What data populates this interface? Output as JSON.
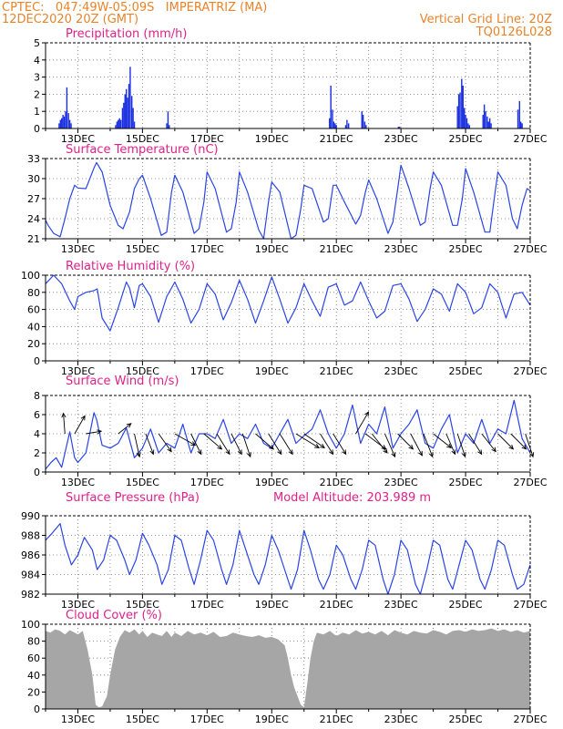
{
  "header": {
    "station_line": "CPTEC:   047:49W-05:09S   IMPERATRIZ (MA)",
    "run_line": "12DEC2020 20Z (GMT)",
    "grid_note": "Vertical Grid Line: 20Z",
    "model_code": "TQ0126L028"
  },
  "colors": {
    "header": "#e8832a",
    "title": "#e0208a",
    "line": "#2a44e6",
    "bar": "#1a2fe0",
    "cloud": "#a6a6a6"
  },
  "chart_data": [
    {
      "type": "bar",
      "title": "Precipitation (mm/h)",
      "ylim": [
        0,
        5
      ],
      "yticks": [
        0,
        1,
        2,
        3,
        4,
        5
      ],
      "xticks": [
        "13DEC",
        "15DEC",
        "17DEC",
        "19DEC",
        "21DEC",
        "23DEC",
        "25DEC",
        "27DEC"
      ],
      "grid": true,
      "x": [
        12.42,
        12.46,
        12.5,
        12.54,
        12.58,
        12.62,
        12.66,
        12.71,
        12.75,
        12.79,
        14.17,
        14.21,
        14.25,
        14.29,
        14.33,
        14.38,
        14.42,
        14.46,
        14.5,
        14.54,
        14.58,
        14.62,
        14.67,
        14.71,
        14.75,
        15.75,
        15.79,
        15.83,
        20.79,
        20.83,
        20.88,
        20.92,
        20.96,
        21.0,
        21.29,
        21.33,
        21.38,
        21.79,
        21.83,
        21.88,
        21.92,
        22.92,
        22.96,
        24.75,
        24.79,
        24.83,
        24.88,
        24.92,
        24.96,
        25.0,
        25.04,
        25.08,
        25.12,
        25.54,
        25.58,
        25.62,
        25.67,
        25.71,
        25.75,
        25.79,
        26.62,
        26.67,
        26.71,
        26.75
      ],
      "values": [
        0.3,
        0.5,
        0.6,
        0.8,
        0.7,
        1.0,
        2.4,
        0.9,
        0.5,
        0.3,
        0.2,
        0.4,
        0.5,
        0.6,
        0.5,
        1.2,
        1.5,
        2.0,
        2.3,
        1.8,
        2.6,
        3.6,
        1.9,
        1.2,
        0.4,
        0.3,
        1.0,
        0.2,
        0.6,
        2.5,
        1.1,
        0.4,
        0.3,
        0.2,
        0.2,
        0.5,
        0.3,
        1.0,
        0.8,
        0.4,
        0.2,
        0.1,
        0.1,
        1.3,
        2.0,
        2.1,
        2.9,
        2.5,
        1.2,
        0.8,
        0.6,
        0.3,
        0.2,
        0.8,
        1.4,
        1.0,
        0.7,
        0.4,
        0.6,
        0.3,
        1.1,
        1.6,
        0.4,
        0.3
      ]
    },
    {
      "type": "line",
      "title": "Surface Temperature (nC)",
      "ylim": [
        21,
        33
      ],
      "yticks": [
        21,
        24,
        27,
        30,
        33
      ],
      "xticks": [
        "13DEC",
        "15DEC",
        "17DEC",
        "19DEC",
        "21DEC",
        "23DEC",
        "25DEC",
        "27DEC"
      ],
      "grid": true,
      "x": [
        12.0,
        12.08,
        12.25,
        12.45,
        12.6,
        12.75,
        12.9,
        13.0,
        13.25,
        13.5,
        13.58,
        13.75,
        14.0,
        14.25,
        14.4,
        14.6,
        14.75,
        14.9,
        15.0,
        15.25,
        15.58,
        15.75,
        15.9,
        16.0,
        16.25,
        16.6,
        16.75,
        16.9,
        17.0,
        17.25,
        17.6,
        17.75,
        17.9,
        18.0,
        18.25,
        18.6,
        18.75,
        18.9,
        19.0,
        19.25,
        19.6,
        19.75,
        19.9,
        20.0,
        20.25,
        20.6,
        20.75,
        20.9,
        21.0,
        21.25,
        21.6,
        21.75,
        21.9,
        22.0,
        22.25,
        22.6,
        22.75,
        22.9,
        23.0,
        23.25,
        23.6,
        23.75,
        23.9,
        24.0,
        24.25,
        24.6,
        24.75,
        24.9,
        25.0,
        25.25,
        25.6,
        25.75,
        25.9,
        26.0,
        26.25,
        26.45,
        26.6,
        26.75,
        26.9,
        27.0
      ],
      "values": [
        23.8,
        23.0,
        21.8,
        21.3,
        24.0,
        27.0,
        29.0,
        28.6,
        28.5,
        31.6,
        32.4,
        31.0,
        26.0,
        23.0,
        22.5,
        25.0,
        28.5,
        30.0,
        30.5,
        27.0,
        21.5,
        22.0,
        28.0,
        30.5,
        28.0,
        21.8,
        22.5,
        26.5,
        31.0,
        28.5,
        22.0,
        22.5,
        26.5,
        31.0,
        28.0,
        22.3,
        21.0,
        26.5,
        29.5,
        28.0,
        21.0,
        21.5,
        25.5,
        29.0,
        28.5,
        23.5,
        24.0,
        29.0,
        29.0,
        26.5,
        23.2,
        24.5,
        28.0,
        29.8,
        27.0,
        21.8,
        23.5,
        28.5,
        32.0,
        28.5,
        23.0,
        23.5,
        28.5,
        31.0,
        29.0,
        23.0,
        23.0,
        27.0,
        31.5,
        28.0,
        22.0,
        22.0,
        27.5,
        31.0,
        29.0,
        24.0,
        22.5,
        26.0,
        28.5,
        28.2
      ]
    },
    {
      "type": "line",
      "title": "Relative Humidity (%)",
      "ylim": [
        0,
        100
      ],
      "yticks": [
        0,
        20,
        40,
        60,
        80,
        100
      ],
      "xticks": [
        "13DEC",
        "15DEC",
        "17DEC",
        "19DEC",
        "21DEC",
        "23DEC",
        "25DEC",
        "27DEC"
      ],
      "grid": true,
      "x": [
        12.0,
        12.25,
        12.5,
        12.75,
        12.9,
        13.0,
        13.25,
        13.5,
        13.6,
        13.75,
        14.0,
        14.25,
        14.5,
        14.6,
        14.75,
        14.9,
        15.0,
        15.25,
        15.5,
        15.75,
        16.0,
        16.25,
        16.5,
        16.75,
        17.0,
        17.25,
        17.5,
        17.75,
        18.0,
        18.25,
        18.5,
        18.75,
        19.0,
        19.25,
        19.5,
        19.75,
        20.0,
        20.25,
        20.5,
        20.75,
        21.0,
        21.25,
        21.5,
        21.75,
        22.0,
        22.25,
        22.5,
        22.75,
        23.0,
        23.25,
        23.5,
        23.75,
        24.0,
        24.25,
        24.5,
        24.75,
        25.0,
        25.25,
        25.5,
        25.75,
        26.0,
        26.25,
        26.5,
        26.75,
        27.0
      ],
      "values": [
        90,
        100,
        90,
        70,
        60,
        75,
        80,
        82,
        84,
        50,
        35,
        62,
        92,
        85,
        62,
        88,
        90,
        75,
        45,
        75,
        92,
        72,
        44,
        60,
        90,
        78,
        48,
        68,
        94,
        72,
        44,
        70,
        98,
        72,
        44,
        62,
        90,
        70,
        52,
        86,
        90,
        65,
        70,
        92,
        70,
        50,
        58,
        88,
        90,
        72,
        46,
        60,
        84,
        78,
        58,
        90,
        80,
        55,
        62,
        90,
        80,
        50,
        78,
        80,
        65
      ]
    },
    {
      "type": "line",
      "title": "Surface Wind (m/s)",
      "ylim": [
        0,
        8
      ],
      "yticks": [
        0,
        2,
        4,
        6,
        8
      ],
      "xticks": [
        "13DEC",
        "15DEC",
        "17DEC",
        "19DEC",
        "21DEC",
        "23DEC",
        "25DEC",
        "27DEC"
      ],
      "grid": true,
      "x": [
        12.0,
        12.17,
        12.33,
        12.5,
        12.6,
        12.75,
        12.9,
        13.0,
        13.25,
        13.5,
        13.58,
        13.75,
        14.0,
        14.25,
        14.5,
        14.75,
        15.0,
        15.25,
        15.5,
        15.75,
        16.0,
        16.25,
        16.5,
        16.75,
        17.0,
        17.25,
        17.5,
        17.75,
        18.0,
        18.25,
        18.5,
        18.75,
        19.0,
        19.25,
        19.5,
        19.75,
        20.0,
        20.25,
        20.5,
        20.75,
        21.0,
        21.25,
        21.5,
        21.75,
        22.0,
        22.25,
        22.5,
        22.75,
        23.0,
        23.25,
        23.5,
        23.75,
        24.0,
        24.25,
        24.5,
        24.75,
        25.0,
        25.25,
        25.5,
        25.75,
        26.0,
        26.25,
        26.5,
        26.75,
        27.0
      ],
      "values": [
        0.3,
        1.0,
        1.5,
        0.5,
        2.0,
        4.2,
        1.5,
        1.0,
        2.0,
        6.2,
        5.5,
        2.8,
        2.5,
        3.0,
        4.6,
        1.5,
        2.5,
        4.5,
        2.0,
        3.0,
        2.5,
        5.0,
        2.0,
        4.0,
        4.0,
        3.5,
        5.5,
        3.0,
        4.0,
        3.5,
        5.0,
        3.0,
        2.5,
        4.0,
        5.5,
        3.0,
        3.8,
        4.5,
        6.5,
        4.0,
        2.5,
        4.0,
        7.0,
        3.0,
        5.0,
        4.0,
        6.8,
        2.5,
        4.0,
        5.0,
        6.5,
        3.0,
        2.5,
        4.5,
        6.0,
        2.0,
        4.0,
        3.0,
        5.5,
        3.0,
        4.5,
        4.0,
        7.5,
        3.5,
        2.0
      ],
      "arrows": [
        {
          "x": 12.6,
          "y": 4.0,
          "dx": -0.06,
          "dy": 0.8
        },
        {
          "x": 12.9,
          "y": 4.0,
          "dx": 0.4,
          "dy": 0.7
        },
        {
          "x": 13.25,
          "y": 4.0,
          "dx": 0.6,
          "dy": 0.1
        },
        {
          "x": 14.25,
          "y": 4.0,
          "dx": 0.5,
          "dy": 0.4
        },
        {
          "x": 14.75,
          "y": 4.0,
          "dx": 0.2,
          "dy": -0.9
        },
        {
          "x": 15.1,
          "y": 4.0,
          "dx": 0.3,
          "dy": -0.8
        },
        {
          "x": 15.5,
          "y": 4.0,
          "dx": 0.5,
          "dy": -0.7
        },
        {
          "x": 16.0,
          "y": 4.0,
          "dx": 0.8,
          "dy": -0.45
        },
        {
          "x": 16.5,
          "y": 4.0,
          "dx": 0.4,
          "dy": -0.8
        },
        {
          "x": 16.9,
          "y": 4.0,
          "dx": 0.7,
          "dy": -0.6
        },
        {
          "x": 17.3,
          "y": 4.0,
          "dx": 0.5,
          "dy": -0.8
        },
        {
          "x": 17.75,
          "y": 4.0,
          "dx": 0.4,
          "dy": -0.8
        },
        {
          "x": 18.1,
          "y": 4.0,
          "dx": 0.3,
          "dy": -0.9
        },
        {
          "x": 18.5,
          "y": 4.0,
          "dx": 0.7,
          "dy": -0.6
        },
        {
          "x": 18.9,
          "y": 4.0,
          "dx": 0.5,
          "dy": -0.8
        },
        {
          "x": 19.25,
          "y": 4.0,
          "dx": 0.5,
          "dy": -0.8
        },
        {
          "x": 19.75,
          "y": 4.0,
          "dx": 0.9,
          "dy": -0.55
        },
        {
          "x": 20.0,
          "y": 4.0,
          "dx": 0.8,
          "dy": -0.55
        },
        {
          "x": 20.5,
          "y": 4.0,
          "dx": 0.5,
          "dy": -0.8
        },
        {
          "x": 20.9,
          "y": 4.0,
          "dx": 0.5,
          "dy": -0.8
        },
        {
          "x": 21.6,
          "y": 4.0,
          "dx": 0.5,
          "dy": 0.85
        },
        {
          "x": 21.9,
          "y": 4.0,
          "dx": 0.8,
          "dy": -0.6
        },
        {
          "x": 22.1,
          "y": 4.0,
          "dx": 0.6,
          "dy": -0.75
        },
        {
          "x": 22.5,
          "y": 4.0,
          "dx": 0.4,
          "dy": -0.9
        },
        {
          "x": 22.9,
          "y": 4.0,
          "dx": 0.6,
          "dy": -0.6
        },
        {
          "x": 23.3,
          "y": 4.0,
          "dx": 0.45,
          "dy": -0.85
        },
        {
          "x": 23.7,
          "y": 4.0,
          "dx": 0.35,
          "dy": -0.9
        },
        {
          "x": 24.0,
          "y": 4.0,
          "dx": 0.7,
          "dy": -0.55
        },
        {
          "x": 24.4,
          "y": 4.0,
          "dx": 0.35,
          "dy": -0.8
        },
        {
          "x": 24.75,
          "y": 4.0,
          "dx": 0.3,
          "dy": -0.9
        },
        {
          "x": 25.1,
          "y": 4.0,
          "dx": 0.5,
          "dy": -0.8
        },
        {
          "x": 25.5,
          "y": 4.0,
          "dx": 0.55,
          "dy": -0.7
        },
        {
          "x": 26.0,
          "y": 4.0,
          "dx": 0.6,
          "dy": -0.6
        },
        {
          "x": 26.4,
          "y": 4.0,
          "dx": 0.6,
          "dy": -0.6
        },
        {
          "x": 26.85,
          "y": 4.0,
          "dx": 0.3,
          "dy": -0.9
        }
      ]
    },
    {
      "type": "line",
      "title": "Surface Pressure (hPa)",
      "subtitle": "Model Altitude: 203.989 m",
      "ylim": [
        982,
        990
      ],
      "yticks": [
        982,
        984,
        986,
        988,
        990
      ],
      "xticks": [
        "13DEC",
        "15DEC",
        "17DEC",
        "19DEC",
        "21DEC",
        "23DEC",
        "25DEC",
        "27DEC"
      ],
      "grid": true,
      "x": [
        12.0,
        12.2,
        12.45,
        12.6,
        12.8,
        13.0,
        13.2,
        13.45,
        13.6,
        13.8,
        14.0,
        14.2,
        14.45,
        14.6,
        14.8,
        15.0,
        15.2,
        15.45,
        15.6,
        15.8,
        16.0,
        16.2,
        16.45,
        16.6,
        16.8,
        17.0,
        17.2,
        17.45,
        17.6,
        17.8,
        18.0,
        18.2,
        18.45,
        18.6,
        18.8,
        19.0,
        19.2,
        19.45,
        19.6,
        19.8,
        20.0,
        20.2,
        20.45,
        20.6,
        20.8,
        21.0,
        21.2,
        21.45,
        21.6,
        21.8,
        22.0,
        22.2,
        22.45,
        22.6,
        22.8,
        23.0,
        23.2,
        23.45,
        23.6,
        23.8,
        24.0,
        24.2,
        24.45,
        24.6,
        24.8,
        25.0,
        25.2,
        25.45,
        25.6,
        25.8,
        26.0,
        26.2,
        26.45,
        26.6,
        26.8,
        27.0
      ],
      "values": [
        987.5,
        988.2,
        989.2,
        987.0,
        985.0,
        986.0,
        987.8,
        986.5,
        984.5,
        985.5,
        988.0,
        987.5,
        985.5,
        984.0,
        985.5,
        988.2,
        987.0,
        985.0,
        983.0,
        984.5,
        988.0,
        987.5,
        984.5,
        983.0,
        985.5,
        988.5,
        987.5,
        984.5,
        983.0,
        985.0,
        988.5,
        986.5,
        984.0,
        983.0,
        985.0,
        988.0,
        986.5,
        984.0,
        982.5,
        984.5,
        988.5,
        986.5,
        983.5,
        982.5,
        984.0,
        987.0,
        986.0,
        983.5,
        982.5,
        984.5,
        987.5,
        987.0,
        983.5,
        982.0,
        984.0,
        987.5,
        986.5,
        983.0,
        982.0,
        984.5,
        987.5,
        987.0,
        983.5,
        982.5,
        985.0,
        987.5,
        986.5,
        983.5,
        982.5,
        984.5,
        987.5,
        987.0,
        984.0,
        982.5,
        983.0,
        985.0
      ]
    },
    {
      "type": "area",
      "title": "Cloud Cover (%)",
      "ylim": [
        0,
        100
      ],
      "yticks": [
        0,
        20,
        40,
        60,
        80,
        100
      ],
      "xticks": [
        "13DEC",
        "15DEC",
        "17DEC",
        "19DEC",
        "21DEC",
        "23DEC",
        "25DEC",
        "27DEC"
      ],
      "grid": true,
      "x": [
        12.0,
        12.15,
        12.3,
        12.45,
        12.6,
        12.75,
        12.9,
        13.0,
        13.15,
        13.3,
        13.45,
        13.55,
        13.65,
        13.75,
        13.9,
        14.0,
        14.15,
        14.3,
        14.45,
        14.6,
        14.75,
        14.9,
        15.0,
        15.15,
        15.3,
        15.45,
        15.6,
        15.75,
        15.9,
        16.0,
        16.2,
        16.4,
        16.6,
        16.8,
        17.0,
        17.2,
        17.4,
        17.6,
        17.8,
        18.0,
        18.2,
        18.4,
        18.6,
        18.8,
        19.0,
        19.2,
        19.4,
        19.5,
        19.6,
        19.7,
        19.8,
        19.9,
        20.0,
        20.1,
        20.2,
        20.3,
        20.4,
        20.6,
        20.8,
        21.0,
        21.2,
        21.4,
        21.6,
        21.8,
        22.0,
        22.2,
        22.4,
        22.6,
        22.8,
        23.0,
        23.2,
        23.4,
        23.6,
        23.8,
        24.0,
        24.2,
        24.4,
        24.6,
        24.8,
        25.0,
        25.2,
        25.4,
        25.6,
        25.8,
        26.0,
        26.2,
        26.4,
        26.6,
        26.8,
        27.0
      ],
      "values": [
        92,
        90,
        94,
        92,
        88,
        93,
        90,
        88,
        92,
        70,
        40,
        5,
        2,
        3,
        15,
        40,
        70,
        85,
        93,
        90,
        94,
        88,
        92,
        85,
        90,
        88,
        86,
        92,
        85,
        90,
        86,
        92,
        88,
        90,
        87,
        91,
        85,
        86,
        90,
        88,
        86,
        85,
        87,
        84,
        85,
        82,
        75,
        60,
        40,
        25,
        15,
        5,
        2,
        30,
        60,
        80,
        90,
        88,
        92,
        86,
        90,
        88,
        93,
        89,
        91,
        88,
        92,
        87,
        93,
        90,
        88,
        92,
        90,
        89,
        93,
        91,
        88,
        92,
        93,
        91,
        94,
        92,
        93,
        95,
        92,
        94,
        91,
        93,
        90,
        92
      ]
    }
  ]
}
